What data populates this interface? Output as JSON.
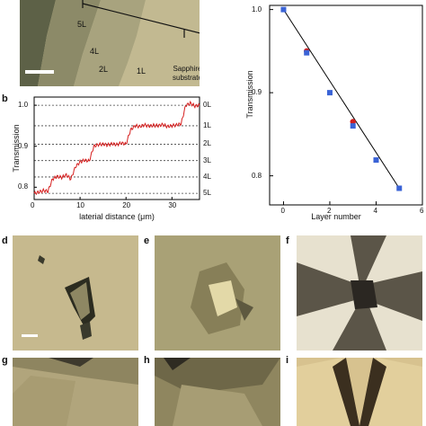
{
  "panel_a": {
    "layer_labels": [
      "5L",
      "4L",
      "2L",
      "1L"
    ],
    "substrate_label": [
      "Sapphire",
      "substrate"
    ]
  },
  "panel_b": {
    "letter": "b",
    "ylabel": "Transmission",
    "xlabel": "laterial distance (μm)",
    "yticks": [
      "1.0",
      "0.9",
      "0.8"
    ],
    "xticks": [
      "0",
      "10",
      "20",
      "30"
    ],
    "level_labels": [
      "0L",
      "1L",
      "2L",
      "3L",
      "4L",
      "5L"
    ]
  },
  "panel_c": {
    "ylabel": "Transmission",
    "xlabel": "Layer number",
    "yticks": [
      "1.0",
      "0.9",
      "0.8"
    ],
    "xticks": [
      "0",
      "2",
      "4",
      "6"
    ]
  },
  "micro_letters": [
    "d",
    "e",
    "f",
    "g",
    "h",
    "i"
  ],
  "colors": {
    "line_profile": "#d62020",
    "square_marker": "#3a63d6",
    "circle_marker": "#d11f1f",
    "fit_line": "#000000"
  },
  "chart_data": [
    {
      "type": "line",
      "title": "",
      "xlabel": "laterial distance (μm)",
      "ylabel": "Transmission",
      "xlim": [
        0,
        36
      ],
      "ylim": [
        0.77,
        1.02
      ],
      "reference_levels": [
        {
          "label": "0L",
          "y": 1.0
        },
        {
          "label": "1L",
          "y": 0.95
        },
        {
          "label": "2L",
          "y": 0.905
        },
        {
          "label": "3L",
          "y": 0.865
        },
        {
          "label": "4L",
          "y": 0.825
        },
        {
          "label": "5L",
          "y": 0.785
        }
      ],
      "series": [
        {
          "x": [
            0,
            1,
            2,
            3,
            4,
            5,
            6,
            7,
            8,
            9,
            10,
            11,
            12,
            13,
            14,
            15,
            16,
            17,
            18,
            19,
            20,
            21,
            22,
            23,
            24,
            25,
            26,
            27,
            28,
            29,
            30,
            31,
            32,
            33,
            34,
            35,
            36
          ],
          "y": [
            0.785,
            0.788,
            0.792,
            0.79,
            0.82,
            0.826,
            0.824,
            0.83,
            0.82,
            0.85,
            0.862,
            0.866,
            0.864,
            0.9,
            0.904,
            0.905,
            0.903,
            0.906,
            0.904,
            0.908,
            0.905,
            0.94,
            0.95,
            0.948,
            0.952,
            0.949,
            0.951,
            0.95,
            0.953,
            0.948,
            0.95,
            0.952,
            0.955,
            1.0,
            1.005,
            0.998,
            1.0
          ]
        }
      ]
    },
    {
      "type": "scatter",
      "title": "",
      "xlabel": "Layer number",
      "ylabel": "Transmission",
      "xlim": [
        -0.6,
        6
      ],
      "ylim": [
        0.765,
        1.005
      ],
      "series": [
        {
          "marker": "square",
          "x": [
            0,
            1,
            2,
            3,
            4,
            5
          ],
          "y": [
            1.0,
            0.948,
            0.9,
            0.86,
            0.819,
            0.785
          ]
        },
        {
          "marker": "circle",
          "x": [
            1,
            3
          ],
          "y": [
            0.95,
            0.865
          ]
        },
        {
          "marker": "line",
          "x": [
            0,
            5
          ],
          "y": [
            1.0,
            0.785
          ]
        }
      ]
    }
  ]
}
